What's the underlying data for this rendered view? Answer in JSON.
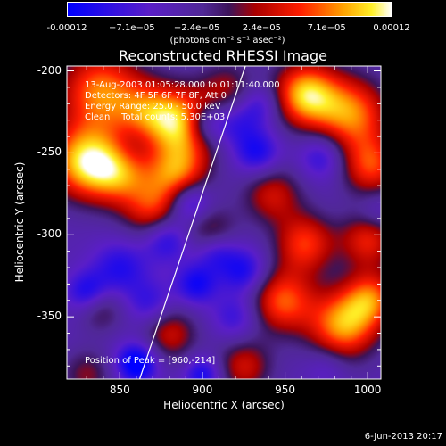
{
  "colorbar": {
    "ticks": [
      "-0.00012",
      "−7.1e−05",
      "−2.4e−05",
      "2.4e−05",
      "7.1e−05",
      "0.00012"
    ],
    "units_label": "(photons cm⁻² s⁻¹ asec⁻²)"
  },
  "plot": {
    "title": "Reconstructed RHESSI Image",
    "info_lines": [
      "13-Aug-2003 01:05:28.000 to 01:11:40.000",
      "Detectors: 4F 5F 6F 7F 8F, Att 0",
      "Energy Range: 25.0 - 50.0 keV",
      "Clean    Total counts: 5.30E+03"
    ],
    "peak_label": "Position of Peak = [960,-214]",
    "footer_date": "6-Jun-2013 20:17"
  },
  "chart_data": {
    "type": "heatmap",
    "title": "Reconstructed RHESSI Image",
    "xlabel": "Heliocentric X (arcsec)",
    "ylabel": "Heliocentric Y (arcsec)",
    "xlim": [
      818,
      1008
    ],
    "ylim": [
      -388,
      -197
    ],
    "x_ticks": [
      "850",
      "900",
      "950",
      "1000"
    ],
    "y_ticks": [
      "-200",
      "-250",
      "-300",
      "-350"
    ],
    "x_tick_values": [
      850,
      900,
      950,
      1000
    ],
    "y_tick_values": [
      -200,
      -250,
      -300,
      -350
    ],
    "colorbar_range": [
      -0.00012,
      0.00012
    ],
    "peak": [
      960,
      -214
    ],
    "limb_line": [
      [
        862,
        -388
      ],
      [
        926,
        -197
      ]
    ],
    "blobs": [
      {
        "x": 838,
        "y": -212,
        "v": 0.0001,
        "r": 18
      },
      {
        "x": 828,
        "y": -255,
        "v": 0.00012,
        "r": 16
      },
      {
        "x": 850,
        "y": -262,
        "v": 8e-05,
        "r": 14
      },
      {
        "x": 868,
        "y": -226,
        "v": 7e-05,
        "r": 14
      },
      {
        "x": 890,
        "y": -232,
        "v": 0.00011,
        "r": 15
      },
      {
        "x": 885,
        "y": -262,
        "v": 9e-05,
        "r": 13
      },
      {
        "x": 870,
        "y": -285,
        "v": 7e-05,
        "r": 13
      },
      {
        "x": 905,
        "y": -298,
        "v": 5e-05,
        "r": 11
      },
      {
        "x": 915,
        "y": -210,
        "v": 4e-05,
        "r": 12
      },
      {
        "x": 962,
        "y": -214,
        "v": 0.00012,
        "r": 14
      },
      {
        "x": 990,
        "y": -226,
        "v": 0.0001,
        "r": 16
      },
      {
        "x": 1002,
        "y": -258,
        "v": 8e-05,
        "r": 13
      },
      {
        "x": 942,
        "y": -275,
        "v": 6e-05,
        "r": 13
      },
      {
        "x": 962,
        "y": -305,
        "v": 8e-05,
        "r": 13
      },
      {
        "x": 1000,
        "y": -303,
        "v": 7e-05,
        "r": 12
      },
      {
        "x": 948,
        "y": -340,
        "v": 9e-05,
        "r": 14
      },
      {
        "x": 985,
        "y": -355,
        "v": 0.00011,
        "r": 15
      },
      {
        "x": 1002,
        "y": -338,
        "v": 8e-05,
        "r": 12
      },
      {
        "x": 880,
        "y": -360,
        "v": 6e-05,
        "r": 12
      },
      {
        "x": 925,
        "y": -380,
        "v": 6e-05,
        "r": 12
      },
      {
        "x": 830,
        "y": -385,
        "v": 4e-05,
        "r": 11
      },
      {
        "x": 838,
        "y": -345,
        "v": 4e-05,
        "r": 10
      },
      {
        "x": 858,
        "y": -245,
        "v": -4e-05,
        "r": 10
      },
      {
        "x": 878,
        "y": -302,
        "v": -8e-05,
        "r": 10
      },
      {
        "x": 892,
        "y": -280,
        "v": -9e-05,
        "r": 9
      },
      {
        "x": 850,
        "y": -320,
        "v": -7e-05,
        "r": 12
      },
      {
        "x": 830,
        "y": -335,
        "v": -8e-05,
        "r": 9
      },
      {
        "x": 868,
        "y": -342,
        "v": -6e-05,
        "r": 10
      },
      {
        "x": 896,
        "y": -330,
        "v": -8e-05,
        "r": 9
      },
      {
        "x": 860,
        "y": -378,
        "v": -0.00011,
        "r": 9
      },
      {
        "x": 900,
        "y": -385,
        "v": -8e-05,
        "r": 8
      },
      {
        "x": 902,
        "y": -232,
        "v": -9e-05,
        "r": 9
      },
      {
        "x": 920,
        "y": -232,
        "v": -6e-05,
        "r": 10
      },
      {
        "x": 933,
        "y": -250,
        "v": -8e-05,
        "r": 10
      },
      {
        "x": 935,
        "y": -220,
        "v": -6e-05,
        "r": 9
      },
      {
        "x": 972,
        "y": -252,
        "v": -7e-05,
        "r": 10
      },
      {
        "x": 925,
        "y": -322,
        "v": -8e-05,
        "r": 10
      },
      {
        "x": 920,
        "y": -350,
        "v": -6e-05,
        "r": 10
      },
      {
        "x": 908,
        "y": -310,
        "v": -7e-05,
        "r": 9
      },
      {
        "x": 1005,
        "y": -285,
        "v": -4e-05,
        "r": 8
      },
      {
        "x": 975,
        "y": -380,
        "v": -4e-05,
        "r": 9
      }
    ]
  }
}
